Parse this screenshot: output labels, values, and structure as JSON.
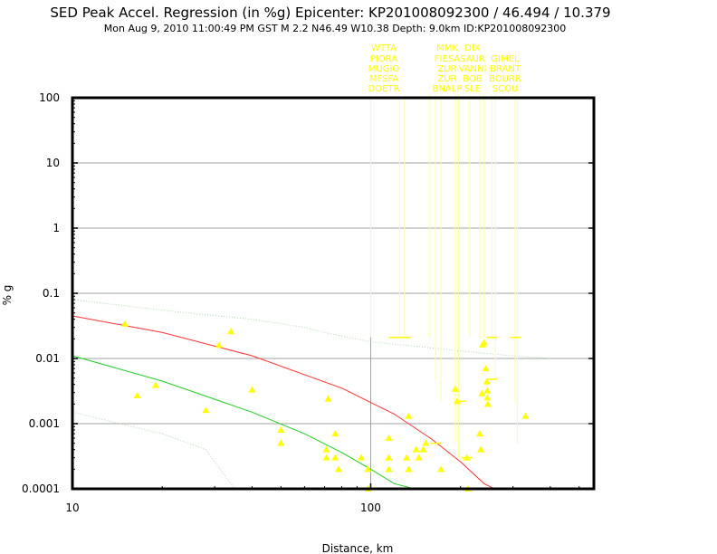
{
  "title": "SED Peak Accel. Regression (in %g) Epicenter: KP201008092300 / 46.494 / 10.379",
  "subtitle": "Mon Aug  9, 2010 11:00:49 PM GST   M 2.2   N46.49 W10.38   Depth: 9.0km   ID:KP201008092300",
  "chart_data": {
    "type": "scatter",
    "xlabel": "Distance, km",
    "ylabel": "% g",
    "xscale": "log",
    "yscale": "log",
    "xlim": [
      10,
      560
    ],
    "ylim": [
      0.0001,
      100
    ],
    "x_ticks": [
      10,
      100
    ],
    "y_ticks": [
      0.0001,
      0.001,
      0.01,
      0.1,
      1,
      10,
      100
    ],
    "x_tick_labels": [
      "10",
      "100"
    ],
    "y_tick_labels": [
      "0.0001",
      "0.001",
      "0.01",
      "0.1",
      "1",
      "10",
      "100"
    ],
    "grid": true,
    "colors": {
      "background": "#ffffff",
      "grid": "#a0a0a0",
      "points": "#ffff00",
      "median_curve": "#ff3030",
      "lower_curve": "#22cc22",
      "upper_dotted": "#aaddaa",
      "leader_lines": "#ffff99"
    },
    "station_labels": [
      {
        "text": "WTTA",
        "col": 0,
        "row": 0
      },
      {
        "text": "MMK",
        "col": 1,
        "row": 0
      },
      {
        "text": "DIX",
        "col": 2,
        "row": 0
      },
      {
        "text": "PIORA",
        "col": 0,
        "row": 1
      },
      {
        "text": "FIESA",
        "col": 1,
        "row": 1
      },
      {
        "text": "SAUR",
        "col": 2,
        "row": 1
      },
      {
        "text": "GIMEL",
        "col": 3,
        "row": 1
      },
      {
        "text": "MUGIO",
        "col": 0,
        "row": 2
      },
      {
        "text": "ZUR",
        "col": 1,
        "row": 2
      },
      {
        "text": "VANNI",
        "col": 2,
        "row": 2
      },
      {
        "text": "BRANT",
        "col": 3,
        "row": 2
      },
      {
        "text": "MFSFA",
        "col": 0,
        "row": 3
      },
      {
        "text": "ZUR",
        "col": 1,
        "row": 3
      },
      {
        "text": "BOB",
        "col": 2,
        "row": 3
      },
      {
        "text": "BOURR",
        "col": 3,
        "row": 3
      },
      {
        "text": "DOETR",
        "col": 0,
        "row": 4
      },
      {
        "text": "BNALP",
        "col": 1,
        "row": 4
      },
      {
        "text": "SLE",
        "col": 2,
        "row": 4
      },
      {
        "text": "SCOU",
        "col": 3,
        "row": 4
      }
    ],
    "leader_x": [
      100,
      125,
      130,
      158,
      165,
      172,
      192,
      197,
      215,
      232,
      240,
      255,
      262,
      305,
      310
    ],
    "leader_ends": [
      {
        "x": 120,
        "y": 0.021
      },
      {
        "x": 130,
        "y": 0.021
      },
      {
        "x": 255,
        "y": 0.021
      },
      {
        "x": 305,
        "y": 0.021
      },
      {
        "x": 255,
        "y": 0.0048
      },
      {
        "x": 200,
        "y": 0.0022
      },
      {
        "x": 165,
        "y": 0.0005
      },
      {
        "x": 210,
        "y": 0.0003
      }
    ],
    "points": [
      {
        "x": 15,
        "y": 0.034
      },
      {
        "x": 16.5,
        "y": 0.0027
      },
      {
        "x": 19,
        "y": 0.0039
      },
      {
        "x": 28,
        "y": 0.0016
      },
      {
        "x": 31,
        "y": 0.016
      },
      {
        "x": 34,
        "y": 0.026
      },
      {
        "x": 40,
        "y": 0.0033
      },
      {
        "x": 50,
        "y": 0.0008
      },
      {
        "x": 50,
        "y": 0.0005
      },
      {
        "x": 72,
        "y": 0.0024
      },
      {
        "x": 71,
        "y": 0.0004
      },
      {
        "x": 71,
        "y": 0.0003
      },
      {
        "x": 76,
        "y": 0.0007
      },
      {
        "x": 76,
        "y": 0.0003
      },
      {
        "x": 78,
        "y": 0.0002
      },
      {
        "x": 93,
        "y": 0.0003
      },
      {
        "x": 98,
        "y": 0.0002
      },
      {
        "x": 98,
        "y": 0.0001
      },
      {
        "x": 115,
        "y": 0.0006
      },
      {
        "x": 115,
        "y": 0.0003
      },
      {
        "x": 115,
        "y": 0.0002
      },
      {
        "x": 134,
        "y": 0.0013
      },
      {
        "x": 132,
        "y": 0.0003
      },
      {
        "x": 134,
        "y": 0.0002
      },
      {
        "x": 142,
        "y": 0.0004
      },
      {
        "x": 145,
        "y": 0.0003
      },
      {
        "x": 150,
        "y": 0.0004
      },
      {
        "x": 153,
        "y": 0.0005
      },
      {
        "x": 172,
        "y": 0.0002
      },
      {
        "x": 192,
        "y": 0.0034
      },
      {
        "x": 195,
        "y": 0.0022
      },
      {
        "x": 210,
        "y": 0.0003
      },
      {
        "x": 212,
        "y": 0.0001
      },
      {
        "x": 232,
        "y": 0.0007
      },
      {
        "x": 234,
        "y": 0.0004
      },
      {
        "x": 236,
        "y": 0.0029
      },
      {
        "x": 237,
        "y": 0.0162
      },
      {
        "x": 240,
        "y": 0.0175
      },
      {
        "x": 243,
        "y": 0.007
      },
      {
        "x": 245,
        "y": 0.0044
      },
      {
        "x": 246,
        "y": 0.0032
      },
      {
        "x": 246,
        "y": 0.0025
      },
      {
        "x": 247,
        "y": 0.002
      },
      {
        "x": 330,
        "y": 0.0013
      }
    ],
    "series": [
      {
        "style": "median",
        "x": [
          10,
          20,
          40,
          80,
          120,
          160,
          200,
          240,
          260
        ],
        "y": [
          0.045,
          0.025,
          0.011,
          0.0035,
          0.0014,
          0.00058,
          0.00026,
          0.00012,
          0.0001
        ]
      },
      {
        "style": "lower",
        "x": [
          10,
          20,
          40,
          60,
          80,
          100,
          120,
          140
        ],
        "y": [
          0.011,
          0.0045,
          0.0015,
          0.0007,
          0.00036,
          0.0002,
          0.00012,
          0.0001
        ]
      },
      {
        "style": "upper_dotted",
        "x": [
          10,
          20,
          40,
          60,
          70,
          100,
          150,
          200,
          300,
          400
        ],
        "y": [
          0.08,
          0.055,
          0.04,
          0.03,
          0.025,
          0.018,
          0.015,
          0.013,
          0.011,
          0.01
        ]
      },
      {
        "style": "lower_dotted",
        "x": [
          10,
          20,
          28,
          35
        ],
        "y": [
          0.0015,
          0.0007,
          0.0004,
          0.0001
        ]
      }
    ]
  }
}
